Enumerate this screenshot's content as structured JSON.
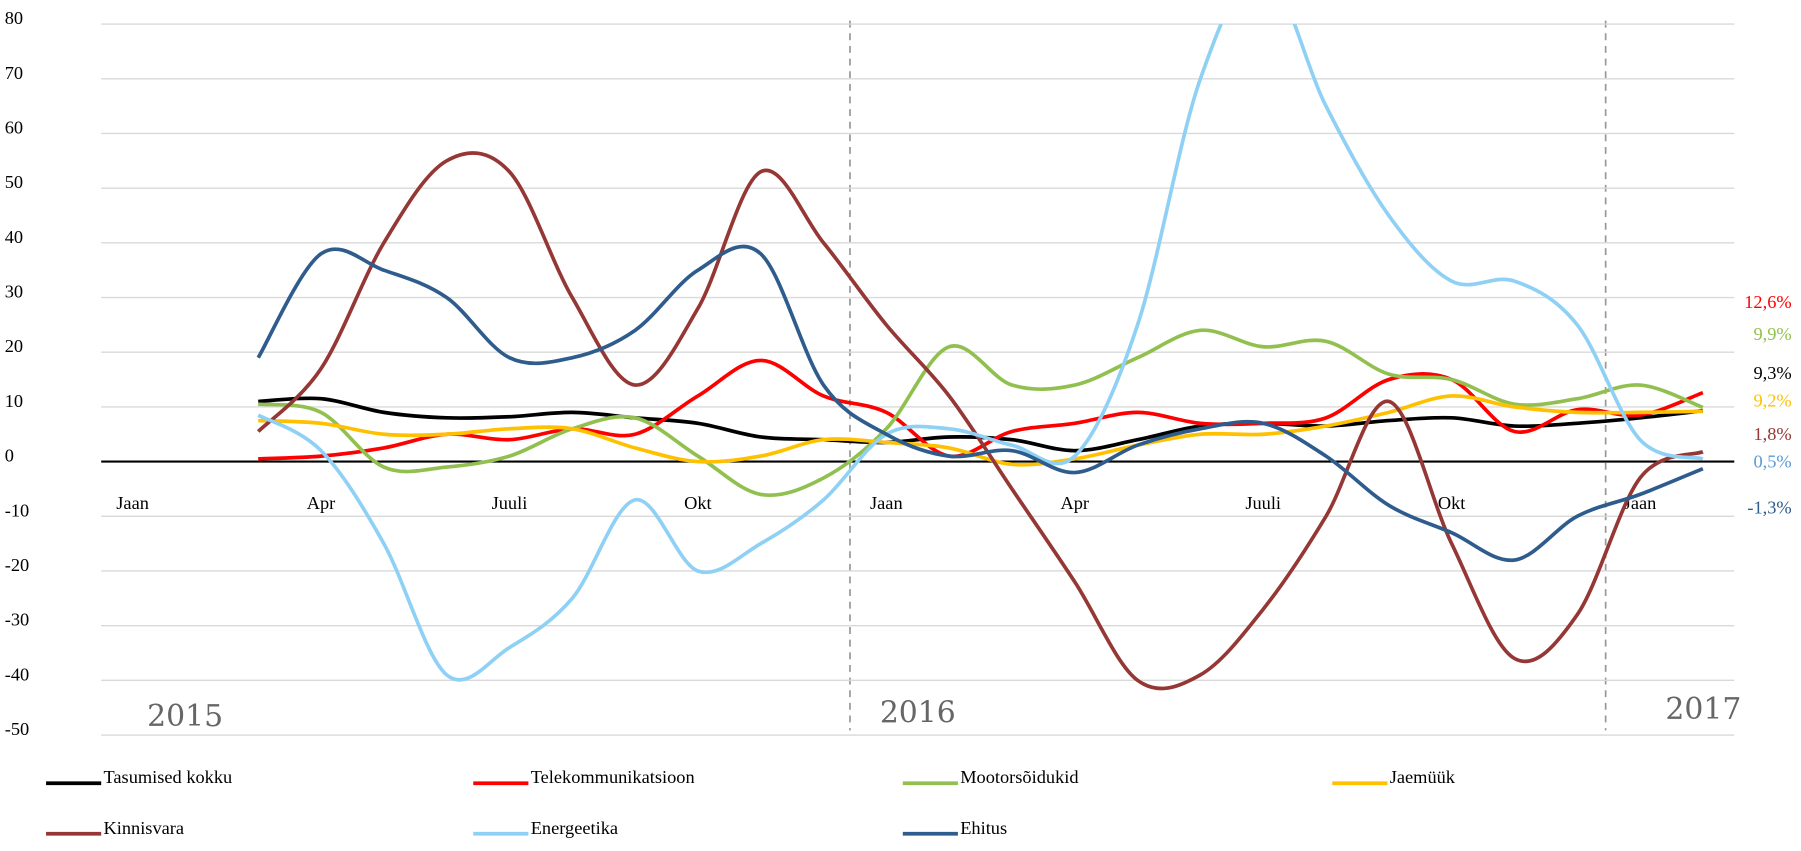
{
  "chart_data": {
    "type": "line",
    "categories": [
      "Jaan",
      null,
      null,
      "Apr",
      null,
      null,
      "Juuli",
      null,
      null,
      "Okt",
      null,
      null,
      "Jaan",
      null,
      null,
      "Apr",
      null,
      null,
      "Juuli",
      null,
      null,
      "Okt",
      null,
      null,
      "Jaan",
      null
    ],
    "annotations": [
      "2015",
      "2016",
      "2017"
    ],
    "ylim": [
      -50,
      80
    ],
    "yticks": [
      -50,
      -40,
      -30,
      -20,
      -10,
      0,
      10,
      20,
      30,
      40,
      50,
      60,
      70,
      80
    ],
    "grid": true,
    "series": [
      {
        "name": "Tasumised kokku",
        "color": "#000000",
        "values": [
          null,
          null,
          11,
          11.5,
          9,
          8,
          8.2,
          9,
          8,
          7,
          4.5,
          4,
          3.5,
          4.5,
          4,
          2,
          4,
          6.5,
          7,
          6.5,
          7.5,
          8,
          6.5,
          7,
          8,
          9.3
        ],
        "value_labels": [
          null,
          null,
          null,
          null,
          null,
          null,
          null,
          null,
          null,
          null,
          null,
          null,
          null,
          null,
          null,
          null,
          null,
          null,
          null,
          null,
          null,
          null,
          null,
          null,
          null,
          "9,3%"
        ]
      },
      {
        "name": "Telekommunikatsioon",
        "color": "#ff0000",
        "values": [
          null,
          null,
          0.5,
          1,
          2.5,
          5,
          4,
          6,
          5,
          12,
          18.5,
          12,
          9,
          1,
          5.5,
          7,
          9,
          7,
          7,
          8,
          15,
          15,
          5.5,
          9.5,
          8.5,
          12.6
        ],
        "value_labels": [
          null,
          null,
          null,
          null,
          null,
          null,
          null,
          null,
          null,
          null,
          null,
          null,
          null,
          null,
          null,
          null,
          null,
          null,
          null,
          null,
          null,
          null,
          null,
          null,
          null,
          "12,6%"
        ]
      },
      {
        "name": "Mootorsõidukid",
        "color": "#92c050",
        "values": [
          null,
          null,
          10.5,
          9,
          -1,
          -1,
          1,
          6,
          8,
          1,
          -6,
          -3,
          6,
          21,
          14,
          14,
          19,
          24,
          21,
          22,
          16,
          15,
          10.5,
          11.5,
          14,
          9.9
        ],
        "value_labels": [
          null,
          null,
          null,
          null,
          null,
          null,
          null,
          null,
          null,
          null,
          null,
          null,
          null,
          null,
          null,
          null,
          null,
          null,
          null,
          null,
          null,
          null,
          null,
          null,
          null,
          "9,9%"
        ]
      },
      {
        "name": "Jaemüük",
        "color": "#ffc000",
        "values": [
          null,
          null,
          7.5,
          7,
          5,
          5,
          6,
          6,
          2.5,
          0,
          1,
          4,
          3.5,
          2.5,
          -0.5,
          0.5,
          3,
          5,
          5,
          6.5,
          9,
          12,
          10,
          9,
          9,
          9.2
        ],
        "value_labels": [
          null,
          null,
          null,
          null,
          null,
          null,
          null,
          null,
          null,
          null,
          null,
          null,
          null,
          null,
          null,
          null,
          null,
          null,
          null,
          null,
          null,
          null,
          null,
          null,
          null,
          "9,2%"
        ]
      },
      {
        "name": "Kinnisvara",
        "color": "#953735",
        "values": [
          null,
          null,
          5.5,
          17,
          40,
          55,
          53,
          30,
          14,
          28,
          53,
          40,
          25,
          12,
          -5,
          -22,
          -40,
          -39,
          -27,
          -10,
          11,
          -15,
          -36,
          -28,
          -3,
          1.8
        ],
        "value_labels": [
          null,
          null,
          null,
          null,
          null,
          null,
          null,
          null,
          null,
          null,
          null,
          null,
          null,
          null,
          null,
          null,
          null,
          null,
          null,
          null,
          null,
          null,
          null,
          null,
          null,
          "1,8%"
        ]
      },
      {
        "name": "Energeetika",
        "color": "#8fd0f5",
        "values": [
          null,
          null,
          8.5,
          2,
          -15,
          -39,
          -34,
          -25,
          -7,
          -20,
          -15,
          -7,
          5,
          6,
          3,
          1,
          25,
          70,
          90,
          65,
          45,
          33,
          33,
          25,
          4,
          0.5
        ],
        "value_labels": [
          null,
          null,
          null,
          null,
          null,
          null,
          null,
          null,
          null,
          null,
          null,
          null,
          null,
          null,
          null,
          null,
          null,
          null,
          null,
          null,
          null,
          null,
          null,
          null,
          null,
          "0,5%"
        ]
      },
      {
        "name": "Ehitus",
        "color": "#2e5c8c",
        "values": [
          null,
          null,
          19,
          38,
          35,
          30,
          19,
          19,
          24,
          35,
          38,
          14,
          5,
          1,
          2,
          -2,
          3,
          6,
          7,
          1,
          -8,
          -13,
          -18,
          -10,
          -6,
          -1.3
        ],
        "value_labels": [
          null,
          null,
          null,
          null,
          null,
          null,
          null,
          null,
          null,
          null,
          null,
          null,
          null,
          null,
          null,
          null,
          null,
          null,
          null,
          null,
          null,
          null,
          null,
          null,
          null,
          "-1,3%"
        ]
      }
    ]
  }
}
